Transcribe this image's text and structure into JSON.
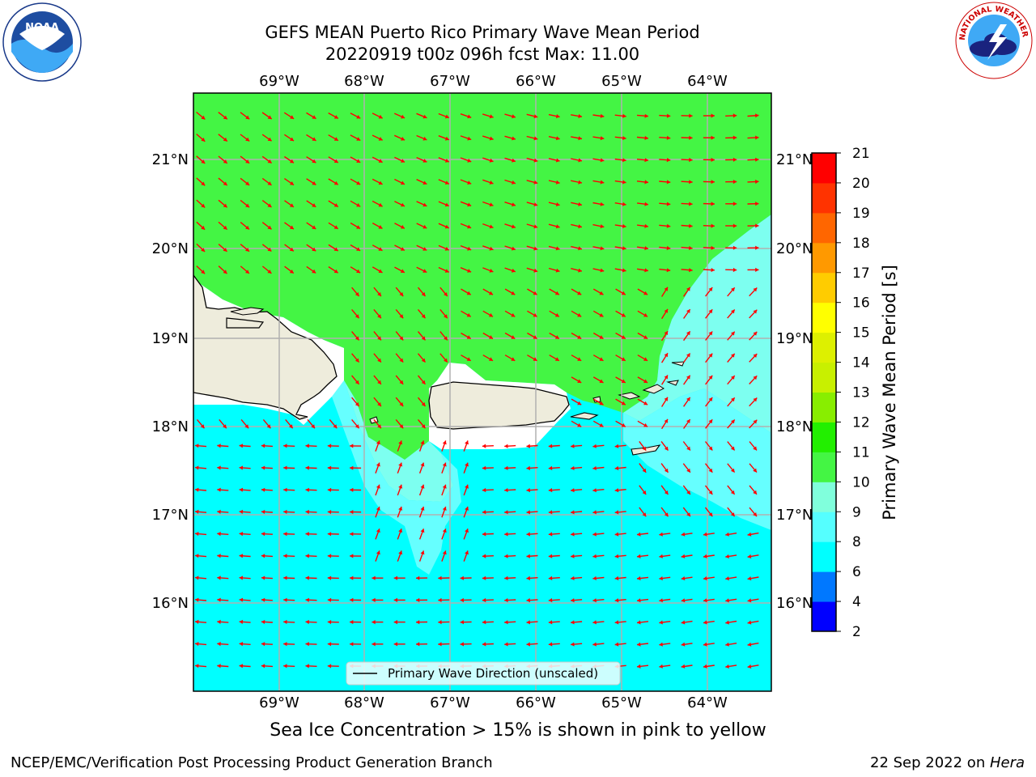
{
  "title": {
    "line1": "GEFS MEAN Puerto Rico Primary Wave Mean Period",
    "line2": "20220919 t00z 096h fcst   Max: 11.00"
  },
  "map": {
    "top_lon_labels": [
      "69°W",
      "68°W",
      "67°W",
      "66°W",
      "65°W",
      "64°W"
    ],
    "bottom_lon_labels": [
      "69°W",
      "68°W",
      "67°W",
      "66°W",
      "65°W",
      "64°W"
    ],
    "left_lat_labels": [
      "21°N",
      "20°N",
      "19°N",
      "18°N",
      "17°N",
      "16°N"
    ],
    "right_lat_labels": [
      "21°N",
      "20°N",
      "19°N",
      "18°N",
      "17°N",
      "16°N"
    ],
    "legend_label": "Primary Wave Direction (unscaled)",
    "colors": {
      "green": "#44f544",
      "cyan": "#00ffff",
      "light_cyan": "#7dfff0",
      "mid_cyan": "#66ffff",
      "land": "#eeecdc",
      "arrow": "#ff0000",
      "grid": "#b0b0b0"
    }
  },
  "colorbar": {
    "label": "Primary Wave Mean Period [s]",
    "ticks": [
      "2",
      "4",
      "6",
      "8",
      "9",
      "10",
      "11",
      "12",
      "13",
      "14",
      "15",
      "16",
      "17",
      "18",
      "19",
      "20",
      "21"
    ],
    "colors": [
      "#0000ff",
      "#0078ff",
      "#00ffff",
      "#55ffff",
      "#80ffdc",
      "#44f544",
      "#22ef00",
      "#88ee00",
      "#c8f000",
      "#ddf000",
      "#ffff00",
      "#ffcc00",
      "#ff9900",
      "#ff6600",
      "#ff3300",
      "#ff0000"
    ]
  },
  "subtitle": "Sea Ice Concentration > 15% is shown in pink to yellow",
  "footer": {
    "credit": "NCEP/EMC/Verification Post Processing Product Generation Branch",
    "date": "22 Sep 2022 on ",
    "host": "Hera"
  },
  "logos": {
    "noaa_text": "NOAA",
    "nws_text": "NATIONAL WEATHER SERVICE"
  }
}
